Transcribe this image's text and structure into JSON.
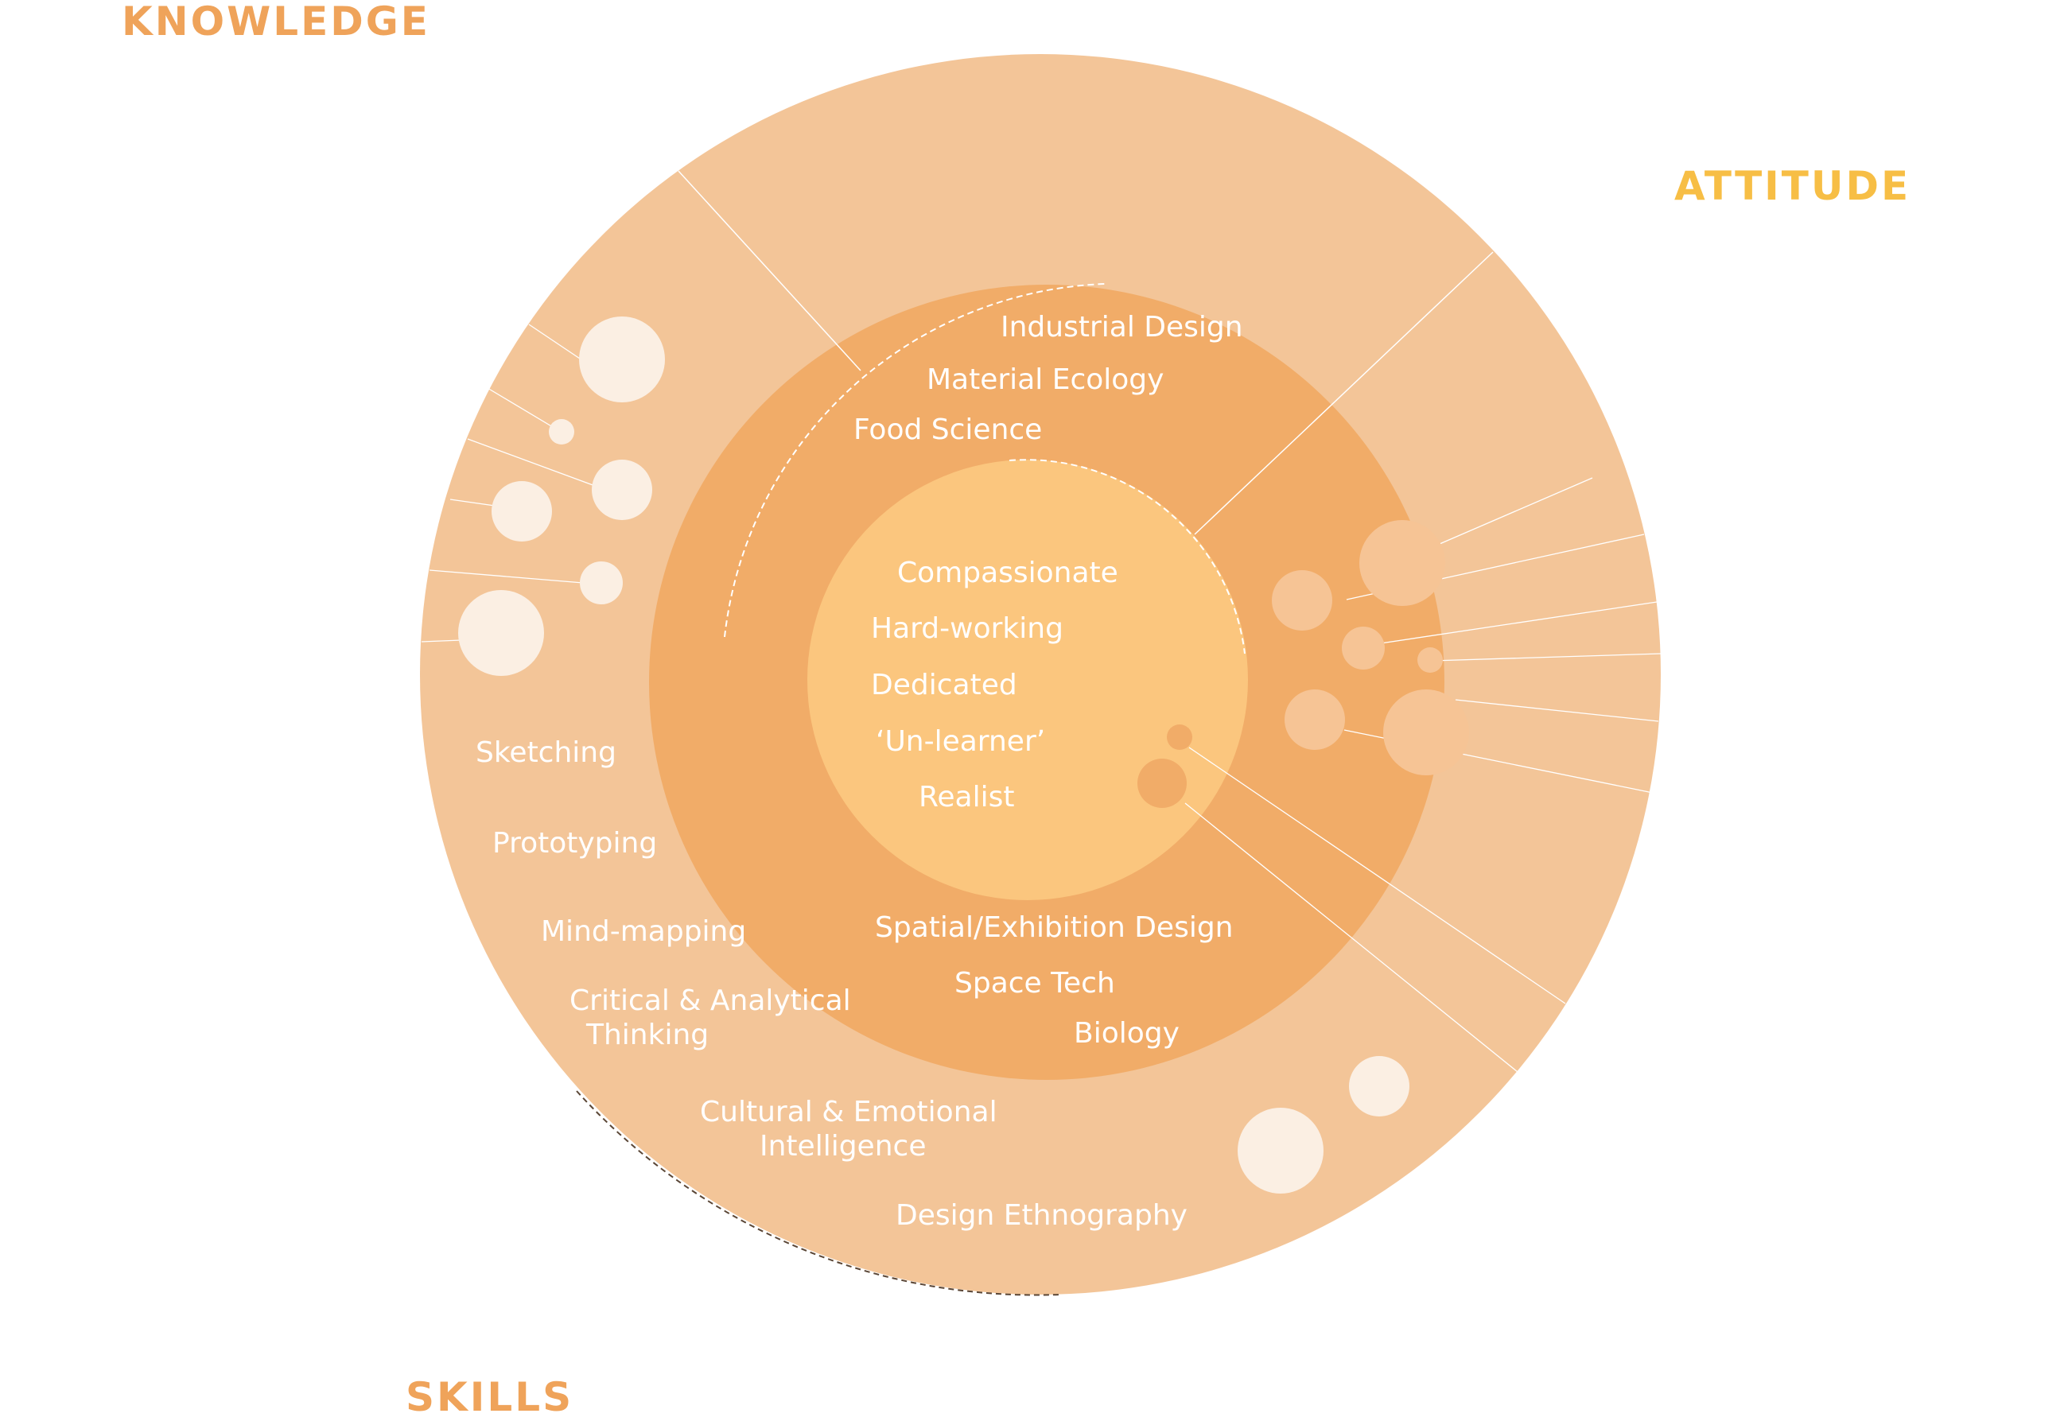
{
  "colors": {
    "outer_ring": "#F3C598",
    "middle_ring": "#F1AC68",
    "inner_circle": "#FBC67E",
    "bubble_light": "#FBEFE3",
    "bubble_mid": "#F6C495",
    "bubble_dark": "#F1AC68",
    "label_knowledge": "#EFA35A",
    "label_attitude": "#F7BE45",
    "label_skills": "#EFA35A",
    "text": "#FFFFFF"
  },
  "labels": {
    "knowledge": "KNOWLEDGE",
    "attitude": "ATTITUDE",
    "skills": "SKILLS"
  },
  "attitude_items": [
    "Compassionate",
    "Hard-working",
    "Dedicated",
    "‘Un-learner’",
    "Realist"
  ],
  "knowledge_items_top": [
    "Industrial Design",
    "Material Ecology",
    "Food Science"
  ],
  "knowledge_items_bottom": [
    "Spatial/Exhibition Design",
    "Space Tech",
    "Biology"
  ],
  "skills_items": [
    "Sketching",
    "Prototyping",
    "Mind-mapping",
    "Critical & Analytical",
    "Thinking",
    "Cultural & Emotional",
    "Intelligence",
    "Design Ethnography"
  ]
}
